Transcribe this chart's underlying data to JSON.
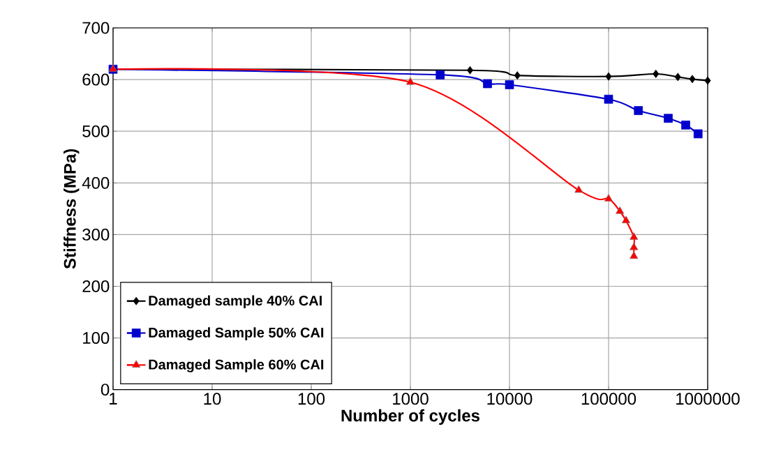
{
  "chart_data": {
    "type": "line",
    "xlabel": "Number of cycles",
    "ylabel": "Stiffness (MPa)",
    "log": "x",
    "xlim": [
      1,
      1000000
    ],
    "xticks": [
      1,
      10,
      100,
      1000,
      10000,
      100000,
      1000000
    ],
    "ylim": [
      0,
      700
    ],
    "yticks": [
      0,
      100,
      200,
      300,
      400,
      500,
      600,
      700
    ],
    "grid": true,
    "legend": "bottom left",
    "series": [
      {
        "name": "Damaged sample 40% CAI",
        "color": "#000000",
        "marker": "diamond",
        "x": [
          1,
          4000,
          12000,
          100000,
          300000,
          500000,
          700000,
          1000000
        ],
        "values": [
          620,
          618,
          608,
          606,
          611,
          605,
          601,
          598
        ]
      },
      {
        "name": "Damaged Sample 50% CAI",
        "color": "#0000cc",
        "marker": "square",
        "x": [
          1,
          2000,
          6000,
          10000,
          100000,
          200000,
          400000,
          600000,
          800000
        ],
        "values": [
          620,
          609,
          592,
          590,
          562,
          540,
          525,
          512,
          495
        ]
      },
      {
        "name": "Damaged Sample 60% CAI",
        "color": "#ff0000",
        "marker": "triangle",
        "x": [
          1,
          1000,
          50000,
          100000,
          130000,
          150000,
          180000,
          180000,
          180000
        ],
        "values": [
          620,
          595,
          386,
          369,
          345,
          327,
          295,
          275,
          258
        ]
      }
    ]
  }
}
